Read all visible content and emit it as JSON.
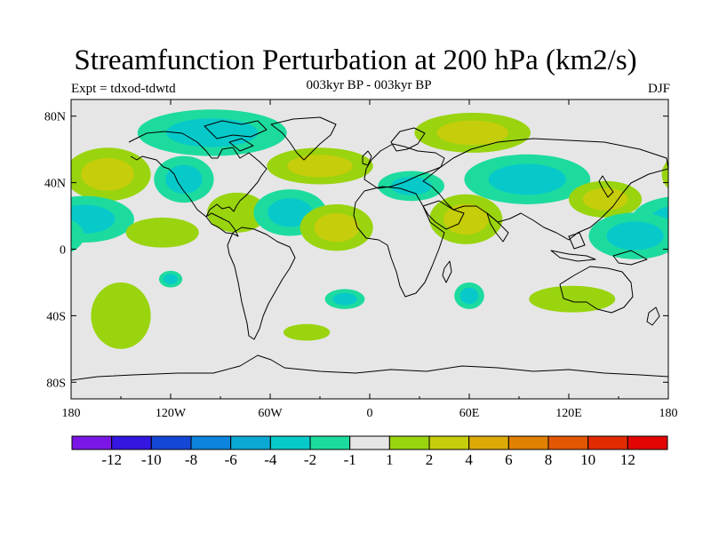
{
  "header": {
    "title": "Streamfunction Perturbation at 200 hPa (km2/s)",
    "left_label": "Expt = tdxod-tdwtd",
    "center_label": "003kyr BP - 003kyr BP",
    "right_label": "DJF"
  },
  "map": {
    "lat_ticks": [
      "80N",
      "40N",
      "0",
      "40S",
      "80S"
    ],
    "lon_ticks": [
      "180",
      "120W",
      "60W",
      "0",
      "60E",
      "120E",
      "180"
    ],
    "ocean_color": "#e6e6e6",
    "coast_color": "#000000"
  },
  "colorbar": {
    "labels": [
      "-12",
      "-10",
      "-8",
      "-6",
      "-4",
      "-2",
      "-1",
      "1",
      "2",
      "4",
      "6",
      "8",
      "10",
      "12"
    ],
    "colors": [
      "#7b17e6",
      "#3316e0",
      "#1447d6",
      "#0d85dc",
      "#0aa9d4",
      "#07c9ca",
      "#1ddb9e",
      "#e6e6e6",
      "#99d40f",
      "#c6cd0a",
      "#dbaa06",
      "#e08103",
      "#e35702",
      "#e32b02",
      "#e30404"
    ]
  },
  "chart_data": {
    "type": "heatmap",
    "title": "Streamfunction Perturbation at 200 hPa (km2/s)",
    "projection": "cylindrical-equidistant",
    "lon_range": [
      -180,
      180
    ],
    "lat_range": [
      -90,
      90
    ],
    "levels": [
      -12,
      -10,
      -8,
      -6,
      -4,
      -2,
      -1,
      1,
      2,
      4,
      6,
      8,
      10,
      12
    ],
    "anomalies": [
      {
        "name": "north-pacific-high",
        "lon": -158,
        "lat": 45,
        "rlon": 26,
        "rlat": 16,
        "value": 3
      },
      {
        "name": "canada-arctic-low",
        "lon": -95,
        "lat": 70,
        "rlon": 45,
        "rlat": 14,
        "value": -2
      },
      {
        "name": "western-us-low",
        "lon": -112,
        "lat": 42,
        "rlon": 18,
        "rlat": 14,
        "value": -3
      },
      {
        "name": "subtropical-pacific-low",
        "lon": -172,
        "lat": 18,
        "rlon": 30,
        "rlat": 14,
        "value": -3
      },
      {
        "name": "eastern-pacific-high",
        "lon": -125,
        "lat": 10,
        "rlon": 22,
        "rlat": 9,
        "value": 1.5
      },
      {
        "name": "mexico-caribbean-high",
        "lon": -80,
        "lat": 22,
        "rlon": 18,
        "rlat": 12,
        "value": 1.5
      },
      {
        "name": "central-atlantic-low",
        "lon": -48,
        "lat": 22,
        "rlon": 22,
        "rlat": 14,
        "value": -3
      },
      {
        "name": "north-atlantic-high",
        "lon": -30,
        "lat": 50,
        "rlon": 32,
        "rlat": 11,
        "value": 3
      },
      {
        "name": "tropical-atlantic-high",
        "lon": -20,
        "lat": 13,
        "rlon": 22,
        "rlat": 14,
        "value": 2.5
      },
      {
        "name": "mediterranean-low",
        "lon": 25,
        "lat": 38,
        "rlon": 20,
        "rlat": 9,
        "value": -2
      },
      {
        "name": "siberia-high",
        "lon": 62,
        "lat": 70,
        "rlon": 35,
        "rlat": 12,
        "value": 2.5
      },
      {
        "name": "arabia-high",
        "lon": 58,
        "lat": 18,
        "rlon": 22,
        "rlat": 15,
        "value": 3
      },
      {
        "name": "central-asia-low",
        "lon": 95,
        "lat": 42,
        "rlon": 38,
        "rlat": 15,
        "value": -3.5
      },
      {
        "name": "japan-high",
        "lon": 142,
        "lat": 30,
        "rlon": 22,
        "rlat": 11,
        "value": 3
      },
      {
        "name": "west-pacific-low",
        "lon": 160,
        "lat": 8,
        "rlon": 28,
        "rlat": 14,
        "value": -2
      },
      {
        "name": "indian-ocean-low",
        "lon": 60,
        "lat": -28,
        "rlon": 9,
        "rlat": 8,
        "value": -2
      },
      {
        "name": "australia-high",
        "lon": 122,
        "lat": -30,
        "rlon": 26,
        "rlat": 8,
        "value": 1.5
      },
      {
        "name": "south-atlantic-low",
        "lon": -15,
        "lat": -30,
        "rlon": 12,
        "rlat": 6,
        "value": -2
      },
      {
        "name": "south-atlantic-high",
        "lon": -38,
        "lat": -50,
        "rlon": 14,
        "rlat": 5,
        "value": 1.5
      },
      {
        "name": "south-pacific-high",
        "lon": -150,
        "lat": -40,
        "rlon": 18,
        "rlat": 20,
        "value": 1.5
      },
      {
        "name": "south-pacific-low",
        "lon": -120,
        "lat": -18,
        "rlon": 7,
        "rlat": 5,
        "value": -2
      }
    ]
  }
}
